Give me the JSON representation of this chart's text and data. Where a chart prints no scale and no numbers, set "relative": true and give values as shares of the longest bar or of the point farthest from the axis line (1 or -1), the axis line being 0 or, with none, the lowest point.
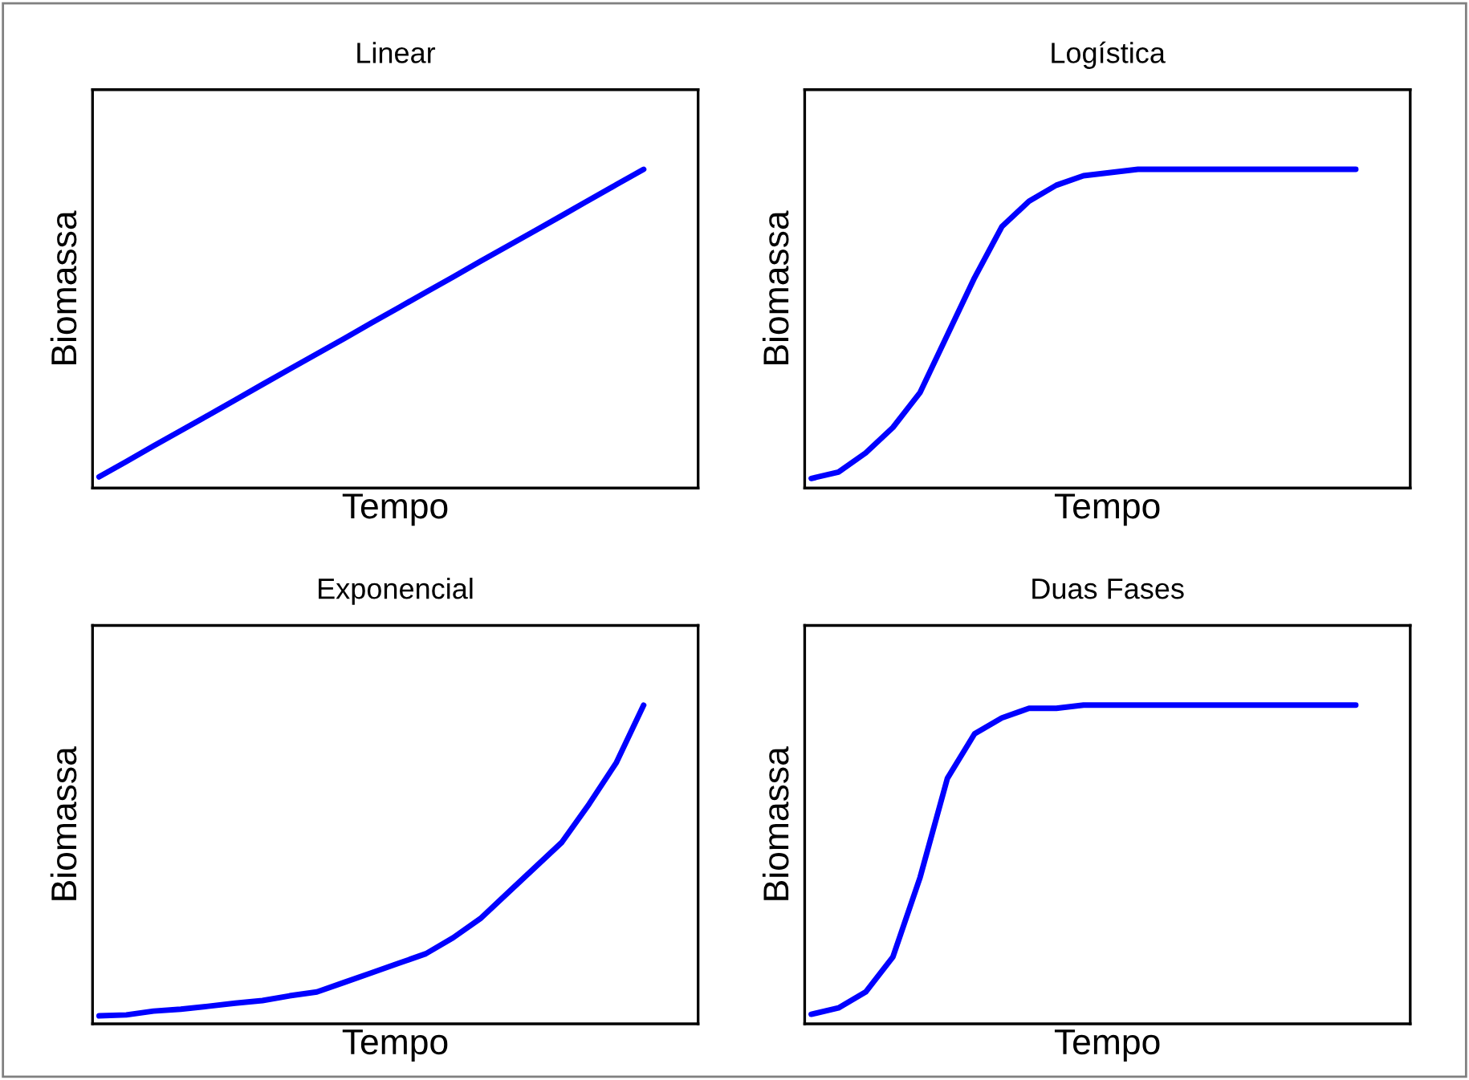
{
  "chart_data": [
    {
      "type": "line",
      "title": "Linear",
      "xlabel": "Tempo",
      "ylabel": "Biomassa",
      "relative": true,
      "tick_labels": false,
      "categories": [
        null,
        null,
        null,
        null,
        null,
        null,
        null,
        null,
        null,
        null,
        null,
        null,
        null,
        null,
        null,
        null,
        null,
        null,
        null,
        null,
        null
      ],
      "series": [
        {
          "color": "#0000ff",
          "values": [
            0.035,
            0.083,
            0.132,
            0.18,
            0.228,
            0.276,
            0.325,
            0.373,
            0.421,
            0.469,
            0.518,
            0.566,
            0.614,
            0.662,
            0.711,
            0.759,
            0.807,
            0.855,
            0.904,
            0.952,
            1
          ]
        }
      ]
    },
    {
      "type": "line",
      "title": "Logística",
      "xlabel": "Tempo",
      "ylabel": "Biomassa",
      "relative": true,
      "tick_labels": false,
      "categories": [
        null,
        null,
        null,
        null,
        null,
        null,
        null,
        null,
        null,
        null,
        null,
        null,
        null,
        null,
        null,
        null,
        null,
        null,
        null,
        null,
        null
      ],
      "series": [
        {
          "color": "#0000ff",
          "values": [
            0.03,
            0.05,
            0.11,
            0.19,
            0.3,
            0.48,
            0.66,
            0.82,
            0.9,
            0.95,
            0.98,
            0.99,
            1,
            1,
            1,
            1,
            1,
            1,
            1,
            1,
            1
          ]
        }
      ]
    },
    {
      "type": "line",
      "title": "Exponencial",
      "xlabel": "Tempo",
      "ylabel": "Biomassa",
      "relative": true,
      "tick_labels": false,
      "categories": [
        null,
        null,
        null,
        null,
        null,
        null,
        null,
        null,
        null,
        null,
        null,
        null,
        null,
        null,
        null,
        null,
        null,
        null,
        null,
        null,
        null
      ],
      "series": [
        {
          "color": "#0000ff",
          "values": [
            0.025,
            0.028,
            0.04,
            0.046,
            0.055,
            0.065,
            0.073,
            0.088,
            0.1,
            0.13,
            0.16,
            0.19,
            0.22,
            0.27,
            0.33,
            0.41,
            0.49,
            0.57,
            0.69,
            0.82,
            1
          ]
        }
      ]
    },
    {
      "type": "line",
      "title": "Duas Fases",
      "xlabel": "Tempo",
      "ylabel": "Biomassa",
      "relative": true,
      "tick_labels": false,
      "categories": [
        null,
        null,
        null,
        null,
        null,
        null,
        null,
        null,
        null,
        null,
        null,
        null,
        null,
        null,
        null,
        null,
        null,
        null,
        null,
        null,
        null
      ],
      "series": [
        {
          "color": "#0000ff",
          "values": [
            0.03,
            0.05,
            0.1,
            0.21,
            0.46,
            0.77,
            0.91,
            0.96,
            0.99,
            0.99,
            1,
            1,
            1,
            1,
            1,
            1,
            1,
            1,
            1,
            1,
            1
          ]
        }
      ]
    }
  ]
}
